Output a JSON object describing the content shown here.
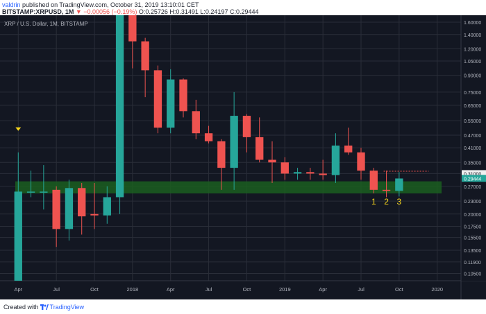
{
  "header": {
    "user": "valdrin",
    "published": "published on TradingView.com, October 31, 2019 13:10:01 CET",
    "symbol": "BITSTAMP:XRPUSD, 1M",
    "change": "▼ −0.00056 (−0.19%)",
    "ohlc": "O:0.25726 H:0.31491 L:0.24197 C:0.29444"
  },
  "legend": "XRP / U.S. Dollar, 1M, BITSTAMP",
  "footer": {
    "created": "Created with",
    "brand": "TradingView"
  },
  "colors": {
    "bg": "#131722",
    "up": "#26a69a",
    "down": "#ef5350",
    "grid": "#2a2e39",
    "axis_text": "#b2b5be",
    "zone": "#1b5e20",
    "marker": "#f9d71c",
    "price_label": "#26a69a",
    "level_label": "#f0f0f0"
  },
  "chart_data": {
    "type": "candlestick",
    "timeframe": "1M",
    "y_scale": "log",
    "ylim": [
      0.1,
      1.6
    ],
    "xlim": [
      "2017-03",
      "2020-02"
    ],
    "y_ticks": [
      "1.60000",
      "1.40000",
      "1.20000",
      "1.05000",
      "0.90000",
      "0.75000",
      "0.65000",
      "0.55000",
      "0.47000",
      "0.41000",
      "0.35000",
      "0.31000",
      "0.27000",
      "0.23000",
      "0.20000",
      "0.17500",
      "0.15500",
      "0.13500",
      "0.11900",
      "0.10500"
    ],
    "x_ticks": [
      {
        "label": "Apr",
        "date": "2017-04"
      },
      {
        "label": "Jul",
        "date": "2017-07"
      },
      {
        "label": "Oct",
        "date": "2017-10"
      },
      {
        "label": "2018",
        "date": "2018-01"
      },
      {
        "label": "Apr",
        "date": "2018-04"
      },
      {
        "label": "Jul",
        "date": "2018-07"
      },
      {
        "label": "Oct",
        "date": "2018-10"
      },
      {
        "label": "2019",
        "date": "2019-01"
      },
      {
        "label": "Apr",
        "date": "2019-04"
      },
      {
        "label": "Jul",
        "date": "2019-07"
      },
      {
        "label": "Oct",
        "date": "2019-10"
      },
      {
        "label": "2020",
        "date": "2020-01"
      }
    ],
    "candles": [
      {
        "date": "2017-04",
        "o": 0.03,
        "h": 0.39,
        "l": 0.03,
        "c": 0.255
      },
      {
        "date": "2017-05",
        "o": 0.255,
        "h": 0.32,
        "l": 0.24,
        "c": 0.255
      },
      {
        "date": "2017-06",
        "o": 0.255,
        "h": 0.34,
        "l": 0.21,
        "c": 0.255
      },
      {
        "date": "2017-07",
        "o": 0.26,
        "h": 0.27,
        "l": 0.14,
        "c": 0.17
      },
      {
        "date": "2017-08",
        "o": 0.17,
        "h": 0.29,
        "l": 0.15,
        "c": 0.265
      },
      {
        "date": "2017-09",
        "o": 0.265,
        "h": 0.28,
        "l": 0.16,
        "c": 0.195
      },
      {
        "date": "2017-10",
        "o": 0.2,
        "h": 0.28,
        "l": 0.17,
        "c": 0.197
      },
      {
        "date": "2017-11",
        "o": 0.197,
        "h": 0.27,
        "l": 0.18,
        "c": 0.24
      },
      {
        "date": "2017-12",
        "o": 0.24,
        "h": 2.6,
        "l": 0.2,
        "c": 2.2
      },
      {
        "date": "2018-01",
        "o": 2.2,
        "h": 2.9,
        "l": 0.97,
        "c": 1.3
      },
      {
        "date": "2018-02",
        "o": 1.3,
        "h": 1.35,
        "l": 0.71,
        "c": 0.95
      },
      {
        "date": "2018-03",
        "o": 0.95,
        "h": 1.0,
        "l": 0.48,
        "c": 0.51
      },
      {
        "date": "2018-04",
        "o": 0.51,
        "h": 0.96,
        "l": 0.48,
        "c": 0.86
      },
      {
        "date": "2018-05",
        "o": 0.86,
        "h": 0.87,
        "l": 0.57,
        "c": 0.61
      },
      {
        "date": "2018-06",
        "o": 0.61,
        "h": 0.69,
        "l": 0.45,
        "c": 0.48
      },
      {
        "date": "2018-07",
        "o": 0.48,
        "h": 0.52,
        "l": 0.43,
        "c": 0.44
      },
      {
        "date": "2018-08",
        "o": 0.44,
        "h": 0.45,
        "l": 0.26,
        "c": 0.33
      },
      {
        "date": "2018-09",
        "o": 0.33,
        "h": 0.75,
        "l": 0.26,
        "c": 0.58
      },
      {
        "date": "2018-10",
        "o": 0.58,
        "h": 0.59,
        "l": 0.39,
        "c": 0.46
      },
      {
        "date": "2018-11",
        "o": 0.46,
        "h": 0.57,
        "l": 0.35,
        "c": 0.36
      },
      {
        "date": "2018-12",
        "o": 0.36,
        "h": 0.44,
        "l": 0.28,
        "c": 0.35
      },
      {
        "date": "2019-01",
        "o": 0.35,
        "h": 0.37,
        "l": 0.29,
        "c": 0.31
      },
      {
        "date": "2019-02",
        "o": 0.31,
        "h": 0.33,
        "l": 0.29,
        "c": 0.315
      },
      {
        "date": "2019-03",
        "o": 0.315,
        "h": 0.33,
        "l": 0.29,
        "c": 0.31
      },
      {
        "date": "2019-04",
        "o": 0.31,
        "h": 0.36,
        "l": 0.29,
        "c": 0.305
      },
      {
        "date": "2019-05",
        "o": 0.305,
        "h": 0.48,
        "l": 0.28,
        "c": 0.42
      },
      {
        "date": "2019-06",
        "o": 0.42,
        "h": 0.51,
        "l": 0.38,
        "c": 0.39
      },
      {
        "date": "2019-07",
        "o": 0.39,
        "h": 0.41,
        "l": 0.29,
        "c": 0.32
      },
      {
        "date": "2019-08",
        "o": 0.32,
        "h": 0.33,
        "l": 0.25,
        "c": 0.26
      },
      {
        "date": "2019-09",
        "o": 0.26,
        "h": 0.32,
        "l": 0.24,
        "c": 0.257
      },
      {
        "date": "2019-10",
        "o": 0.257,
        "h": 0.315,
        "l": 0.242,
        "c": 0.294
      }
    ],
    "support_zone": [
      0.25,
      0.285
    ],
    "resistance_line": {
      "price": 0.318,
      "from": "2019-09",
      "to": "2019-12"
    },
    "current_price": {
      "price": 0.29444,
      "label": "0.29444"
    },
    "level_label": {
      "price": 0.31,
      "label": "0.31000"
    },
    "marker": {
      "date": "2017-04",
      "price": 0.5
    },
    "annotations": [
      {
        "text": "1",
        "date": "2019-08",
        "price": 0.222
      },
      {
        "text": "2",
        "date": "2019-09",
        "price": 0.222
      },
      {
        "text": "3",
        "date": "2019-10",
        "price": 0.222
      }
    ]
  }
}
